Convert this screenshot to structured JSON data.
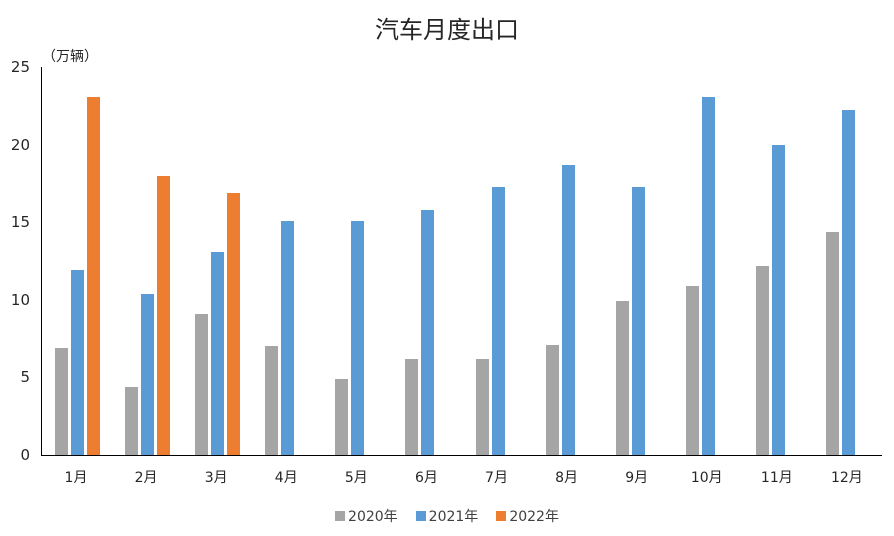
{
  "chart_data": {
    "type": "bar",
    "title": "汽车月度出口",
    "unit_label": "（万辆）",
    "xlabel": "",
    "ylabel": "万辆",
    "ylim": [
      0,
      25
    ],
    "yticks": [
      0,
      5,
      10,
      15,
      20,
      25
    ],
    "grid": false,
    "legend_position": "bottom",
    "categories": [
      "1月",
      "2月",
      "3月",
      "4月",
      "5月",
      "6月",
      "7月",
      "8月",
      "9月",
      "10月",
      "11月",
      "12月"
    ],
    "series": [
      {
        "name": "2020年",
        "color": "#A5A5A5",
        "values": [
          6.9,
          4.4,
          9.1,
          7.0,
          4.9,
          6.2,
          6.2,
          7.1,
          9.9,
          10.9,
          12.2,
          14.4
        ]
      },
      {
        "name": "2021年",
        "color": "#5B9BD5",
        "values": [
          11.9,
          10.4,
          13.1,
          15.1,
          15.1,
          15.8,
          17.3,
          18.7,
          17.3,
          23.1,
          20.0,
          22.2
        ]
      },
      {
        "name": "2022年",
        "color": "#ED7D31",
        "values": [
          23.1,
          18.0,
          16.9,
          null,
          null,
          null,
          null,
          null,
          null,
          null,
          null,
          null
        ]
      }
    ]
  }
}
